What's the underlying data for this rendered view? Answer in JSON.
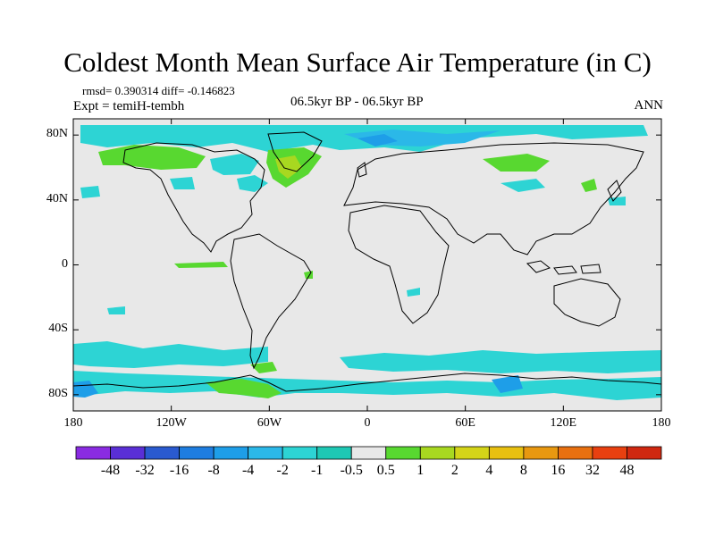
{
  "title": "Coldest Month Mean Surface Air Temperature (in C)",
  "stats": "rmsd= 0.390314  diff= -0.146823",
  "experiment": "Expt = temiH-tembh",
  "period": "06.5kyr BP - 06.5kyr BP",
  "season": "ANN",
  "y_axis": {
    "ticks": [
      80,
      40,
      0,
      -40,
      -80
    ],
    "labels": [
      "80N",
      "40N",
      "0",
      "40S",
      "80S"
    ]
  },
  "x_axis": {
    "ticks": [
      -180,
      -120,
      -60,
      0,
      60,
      120,
      180
    ],
    "labels": [
      "180",
      "120W",
      "60W",
      "0",
      "60E",
      "120E",
      "180"
    ]
  },
  "colorbar": {
    "labels": [
      "-48",
      "-32",
      "-16",
      "-8",
      "-4",
      "-2",
      "-1",
      "-0.5",
      "0.5",
      "1",
      "2",
      "4",
      "8",
      "16",
      "32",
      "48"
    ],
    "colors": [
      "#8a2be2",
      "#5a2fd6",
      "#2a5ad0",
      "#1e7de0",
      "#1e9ee8",
      "#2bb8e8",
      "#2dd4d4",
      "#1ec8b4",
      "#e8e8e8",
      "#58d830",
      "#a8d820",
      "#d4d418",
      "#e8c010",
      "#e89810",
      "#e87010",
      "#e84010"
    ]
  },
  "map": {
    "background": "#e8e8e8",
    "anomaly_colors": {
      "cyan": "#2dd4d4",
      "teal": "#1ec8b4",
      "blue": "#2bb8e8",
      "green": "#58d830",
      "yellow": "#a8d820"
    }
  }
}
